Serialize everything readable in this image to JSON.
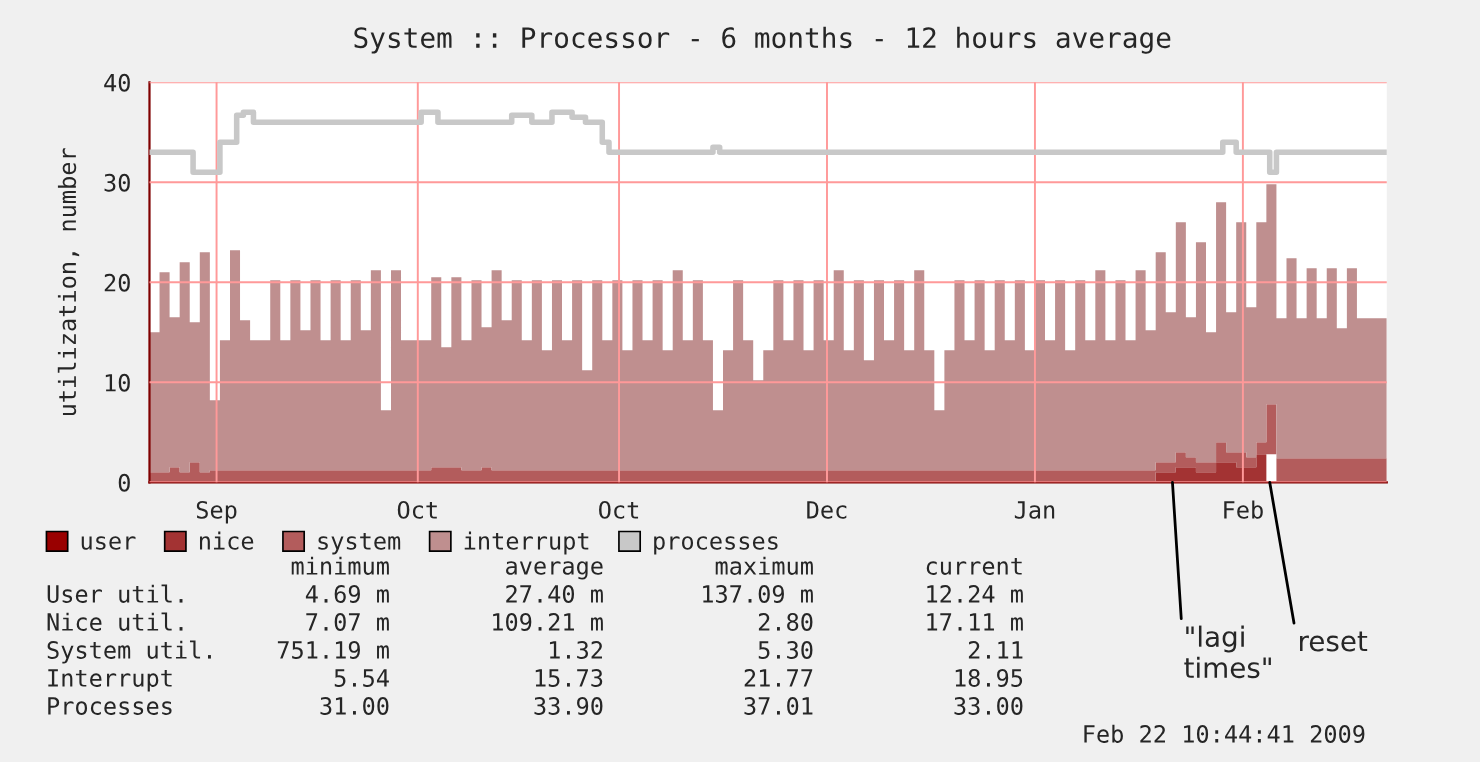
{
  "chart_data": {
    "type": "area",
    "stacked": true,
    "title": "System :: Processor - 6 months - 12 hours average",
    "ylabel": "utilization, number",
    "xlim": [
      "2008-08-22",
      "2009-02-22T10:44"
    ],
    "ylim": [
      0,
      40
    ],
    "xticks": [
      {
        "value": "2008-09-01",
        "label": "Sep"
      },
      {
        "value": "2008-10-01",
        "label": "Oct"
      },
      {
        "value": "2008-10-31",
        "label": "Oct"
      },
      {
        "value": "2008-12-01",
        "label": "Dec"
      },
      {
        "value": "2009-01-01",
        "label": "Jan"
      },
      {
        "value": "2009-02-01",
        "label": "Feb"
      }
    ],
    "yticks": [
      0,
      10,
      20,
      30,
      40
    ],
    "grid": true,
    "legend": "bottom",
    "x": [
      "2008-08-22",
      "2008-08-23T12:00",
      "2008-08-25",
      "2008-08-26T12:00",
      "2008-08-28",
      "2008-08-29T12:00",
      "2008-08-31",
      "2008-09-01T12:00",
      "2008-09-03",
      "2008-09-04T12:00",
      "2008-09-06",
      "2008-09-07T12:00",
      "2008-09-09",
      "2008-09-10T12:00",
      "2008-09-12",
      "2008-09-13T12:00",
      "2008-09-15",
      "2008-09-16T12:00",
      "2008-09-18",
      "2008-09-19T12:00",
      "2008-09-21",
      "2008-09-22T12:00",
      "2008-09-24",
      "2008-09-25T12:00",
      "2008-09-27",
      "2008-09-28T12:00",
      "2008-09-30",
      "2008-10-01T12:00",
      "2008-10-03",
      "2008-10-04T12:00",
      "2008-10-06",
      "2008-10-07T12:00",
      "2008-10-09",
      "2008-10-10T12:00",
      "2008-10-12",
      "2008-10-13T12:00",
      "2008-10-15",
      "2008-10-16T12:00",
      "2008-10-18",
      "2008-10-19T12:00",
      "2008-10-21",
      "2008-10-22T12:00",
      "2008-10-24",
      "2008-10-25T12:00",
      "2008-10-27",
      "2008-10-28T12:00",
      "2008-10-30",
      "2008-10-31T12:00",
      "2008-11-02",
      "2008-11-03T12:00",
      "2008-11-05",
      "2008-11-06T12:00",
      "2008-11-08",
      "2008-11-09T12:00",
      "2008-11-11",
      "2008-11-12T12:00",
      "2008-11-14",
      "2008-11-15T12:00",
      "2008-11-17",
      "2008-11-18T12:00",
      "2008-11-20",
      "2008-11-21T12:00",
      "2008-11-23",
      "2008-11-24T12:00",
      "2008-11-26",
      "2008-11-27T12:00",
      "2008-11-29",
      "2008-11-30T12:00",
      "2008-12-02",
      "2008-12-03T12:00",
      "2008-12-05",
      "2008-12-06T12:00",
      "2008-12-08",
      "2008-12-09T12:00",
      "2008-12-11",
      "2008-12-12T12:00",
      "2008-12-14",
      "2008-12-15T12:00",
      "2008-12-17",
      "2008-12-18T12:00",
      "2008-12-20",
      "2008-12-21T12:00",
      "2008-12-23",
      "2008-12-24T12:00",
      "2008-12-26",
      "2008-12-27T12:00",
      "2008-12-29",
      "2008-12-30T12:00",
      "2009-01-01",
      "2009-01-02T12:00",
      "2009-01-04",
      "2009-01-05T12:00",
      "2009-01-07",
      "2009-01-08T12:00",
      "2009-01-10",
      "2009-01-11T12:00",
      "2009-01-13",
      "2009-01-14T12:00",
      "2009-01-16",
      "2009-01-17T12:00",
      "2009-01-19",
      "2009-01-20T12:00",
      "2009-01-22",
      "2009-01-23T12:00",
      "2009-01-25",
      "2009-01-26T12:00",
      "2009-01-28",
      "2009-01-29T12:00",
      "2009-01-31",
      "2009-02-01T12:00",
      "2009-02-03",
      "2009-02-04T12:00",
      "2009-02-06",
      "2009-02-07T12:00",
      "2009-02-09",
      "2009-02-10T12:00",
      "2009-02-12",
      "2009-02-13T12:00",
      "2009-02-15",
      "2009-02-16T12:00",
      "2009-02-18",
      "2009-02-22T10:44"
    ],
    "series": [
      {
        "name": "user",
        "color": "#990000",
        "values": [
          null,
          null,
          null,
          null,
          null,
          null,
          null,
          null,
          null,
          null,
          null,
          null,
          null,
          null,
          null,
          null,
          null,
          null,
          null,
          null,
          null,
          null,
          null,
          null,
          null,
          null,
          null,
          null,
          null,
          null,
          null,
          null,
          null,
          null,
          null,
          null,
          null,
          null,
          null,
          null,
          null,
          null,
          null,
          null,
          null,
          null,
          null,
          null,
          null,
          null,
          null,
          null,
          null,
          null,
          null,
          null,
          null,
          null,
          null,
          null,
          null,
          null,
          null,
          null,
          null,
          null,
          null,
          null,
          null,
          null,
          null,
          null,
          null,
          null,
          null,
          null,
          null,
          null,
          null,
          null,
          null,
          null,
          null,
          null,
          null,
          null,
          null,
          null,
          null,
          null,
          null,
          null,
          null,
          null,
          null,
          null,
          null,
          null,
          null,
          null,
          null,
          null,
          null,
          null,
          null,
          null,
          null,
          null,
          null,
          null,
          null,
          null,
          null,
          null,
          null,
          null,
          null,
          null,
          null,
          null,
          null,
          null
        ]
      },
      {
        "name": "nice",
        "color": "#a33333",
        "values": [
          null,
          null,
          null,
          null,
          null,
          null,
          null,
          null,
          null,
          null,
          null,
          null,
          null,
          null,
          null,
          null,
          null,
          null,
          null,
          null,
          null,
          null,
          null,
          null,
          null,
          null,
          null,
          null,
          null,
          null,
          null,
          null,
          null,
          null,
          null,
          null,
          null,
          null,
          null,
          null,
          null,
          null,
          null,
          null,
          null,
          null,
          null,
          null,
          null,
          null,
          null,
          null,
          null,
          null,
          null,
          null,
          null,
          null,
          null,
          null,
          null,
          null,
          null,
          null,
          null,
          null,
          null,
          null,
          null,
          null,
          null,
          null,
          null,
          null,
          null,
          null,
          null,
          null,
          null,
          null,
          null,
          null,
          null,
          null,
          null,
          null,
          null,
          null,
          null,
          null,
          null,
          null,
          null,
          null,
          null,
          null,
          null,
          null,
          null,
          null,
          1,
          1,
          1.5,
          1.5,
          1,
          1,
          2,
          2,
          1.5,
          1.5,
          2.8,
          2.8,
          null,
          null,
          null,
          null,
          null,
          null,
          null,
          null,
          null,
          null
        ]
      },
      {
        "name": "system",
        "color": "#b35c5c",
        "values": [
          1,
          1,
          1.5,
          1,
          2,
          1,
          1.2,
          1.2,
          1.2,
          1.2,
          1.2,
          1.2,
          1.2,
          1.2,
          1.2,
          1.2,
          1.2,
          1.2,
          1.2,
          1.2,
          1.2,
          1.2,
          1.2,
          1.2,
          1.2,
          1.2,
          1.2,
          1.2,
          1.5,
          1.5,
          1.5,
          1.2,
          1.2,
          1.5,
          1.2,
          1.2,
          1.2,
          1.2,
          1.2,
          1.2,
          1.2,
          1.2,
          1.2,
          1.2,
          1.2,
          1.2,
          1.2,
          1.2,
          1.2,
          1.2,
          1.2,
          1.2,
          1.2,
          1.2,
          1.2,
          1.2,
          1.2,
          1.2,
          1.2,
          1.2,
          1.2,
          1.2,
          1.2,
          1.2,
          1.2,
          1.2,
          1.2,
          1.2,
          1.2,
          1.2,
          1.2,
          1.2,
          1.2,
          1.2,
          1.2,
          1.2,
          1.2,
          1.2,
          1.2,
          1.2,
          1.2,
          1.2,
          1.2,
          1.2,
          1.2,
          1.2,
          1.2,
          1.2,
          1.2,
          1.2,
          1.2,
          1.2,
          1.2,
          1.2,
          1.2,
          1.2,
          1.2,
          1.2,
          1.2,
          1.2,
          1,
          1,
          1.5,
          1,
          1,
          1,
          2,
          1,
          1.5,
          1,
          1.2,
          5,
          2.4,
          2.4,
          2.4,
          2.4,
          2.4,
          2.4,
          2.4,
          2.4,
          2.4,
          2.4
        ]
      },
      {
        "name": "interrupt",
        "color": "#bf8f8f",
        "values": [
          14,
          20,
          15,
          21,
          14,
          22,
          7,
          13,
          22,
          15,
          13,
          13,
          19,
          13,
          19,
          14,
          19,
          13,
          19,
          13,
          19,
          14,
          20,
          6,
          20,
          13,
          13,
          13,
          19,
          12,
          19,
          13,
          19,
          14,
          20,
          15,
          19,
          13,
          19,
          12,
          19,
          13,
          19,
          10,
          19,
          13,
          19,
          12,
          19,
          13,
          19,
          12,
          20,
          13,
          19,
          13,
          6,
          12,
          19,
          13,
          9,
          12,
          19,
          13,
          19,
          12,
          19,
          13,
          20,
          12,
          19,
          11,
          19,
          13,
          19,
          12,
          20,
          12,
          6,
          12,
          19,
          13,
          19,
          12,
          19,
          13,
          19,
          12,
          19,
          13,
          19,
          12,
          19,
          13,
          20,
          13,
          19,
          13,
          20,
          14,
          21,
          15,
          23,
          14,
          22,
          13,
          24,
          14,
          23,
          15,
          22,
          22,
          14,
          20,
          14,
          19,
          14,
          19,
          13,
          19,
          14,
          14
        ]
      },
      {
        "name": "processes",
        "type": "step",
        "color": "#c8c8c8",
        "x": [
          "2008-08-22",
          "2008-08-28T12:00",
          "2008-09-01T12:00",
          "2008-09-04",
          "2008-09-05",
          "2008-09-06T12:00",
          "2008-10-01T12:00",
          "2008-10-04",
          "2008-10-15",
          "2008-10-18",
          "2008-10-21",
          "2008-10-24",
          "2008-10-26",
          "2008-10-28T12:00",
          "2008-10-29T12:00",
          "2008-11-14",
          "2008-11-15",
          "2009-01-29",
          "2009-01-31",
          "2009-02-05",
          "2009-02-06",
          "2009-02-22T10:44"
        ],
        "values": [
          33,
          31,
          34,
          36.7,
          37,
          36,
          37,
          36,
          36.7,
          36,
          37,
          36.5,
          36,
          34,
          33,
          33.5,
          33,
          34,
          33,
          31,
          33,
          33
        ]
      }
    ],
    "annotations": [
      "minimum",
      "average",
      "maximum",
      "current",
      "User util.",
      "4.69 m",
      "27.40 m",
      "137.09 m",
      "12.24 m",
      "Nice util.",
      "7.07 m",
      "109.21 m",
      "2.80",
      "17.11 m",
      "System util.",
      "751.19 m",
      "1.32",
      "5.30",
      "2.11",
      "Interrupt",
      "5.54",
      "15.73",
      "21.77",
      "18.95",
      "Processes",
      "31.00",
      "33.90",
      "37.01",
      "33.00",
      "Feb 22 10:44:41 2009",
      {
        "text": "\"lagi\ntimes\"",
        "x": "2009-01-21T12:00",
        "y": 0
      },
      {
        "text": "reset",
        "x": "2009-02-05",
        "y": 0
      }
    ]
  }
}
